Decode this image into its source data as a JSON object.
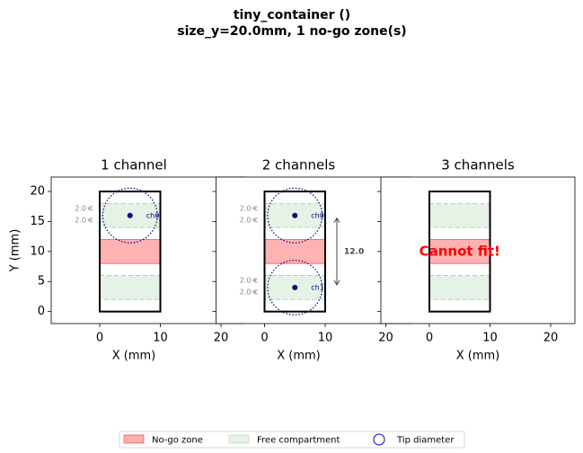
{
  "title": "tiny_container ()",
  "subtitle": "size_y=20.0mm, 1 no-go zone(s)",
  "legend": {
    "position": "bottom",
    "entries": [
      {
        "name": "No-go zone",
        "color": "#ff0000"
      },
      {
        "name": "Free compartment",
        "color": "#008000"
      },
      {
        "name": "Tip diameter",
        "color": "#00008b"
      }
    ]
  },
  "chart_data": [
    {
      "type": "schematic",
      "title": "1 channel",
      "xlabel": "X (mm)",
      "ylabel": "Y (mm)",
      "xlim": [
        -8,
        24
      ],
      "ylim": [
        -2,
        22.4
      ],
      "xticks": [
        0,
        10,
        20
      ],
      "yticks": [
        0,
        5,
        10,
        15,
        20
      ],
      "container": {
        "x": [
          0,
          10
        ],
        "y": [
          0,
          20
        ]
      },
      "no_go": [
        [
          8,
          12
        ]
      ],
      "free": [
        [
          2,
          6
        ],
        [
          14,
          18
        ]
      ],
      "tips": [
        {
          "name": "ch0",
          "x": 5,
          "y": 16,
          "diameter": 9,
          "clearances": [
            "2.0",
            "2.0"
          ]
        }
      ]
    },
    {
      "type": "schematic",
      "title": "2 channels",
      "xlabel": "X (mm)",
      "xlim": [
        -8,
        24
      ],
      "ylim": [
        -2,
        22.4
      ],
      "xticks": [
        0,
        10,
        20
      ],
      "yticks": [
        0,
        5,
        10,
        15,
        20
      ],
      "container": {
        "x": [
          0,
          10
        ],
        "y": [
          0,
          20
        ]
      },
      "no_go": [
        [
          8,
          12
        ]
      ],
      "free": [
        [
          2,
          6
        ],
        [
          14,
          18
        ]
      ],
      "tips": [
        {
          "name": "ch0",
          "x": 5,
          "y": 16,
          "diameter": 9,
          "clearances": [
            "2.0",
            "2.0"
          ]
        },
        {
          "name": "ch1",
          "x": 5,
          "y": 4,
          "diameter": 9,
          "clearances": [
            "2.0",
            "2.0"
          ]
        }
      ],
      "spacing": {
        "value": 12,
        "label": "12.0"
      }
    },
    {
      "type": "schematic",
      "title": "3 channels",
      "xlabel": "X (mm)",
      "xlim": [
        -8,
        24
      ],
      "ylim": [
        -2,
        22.4
      ],
      "xticks": [
        0,
        10,
        20
      ],
      "yticks": [
        0,
        5,
        10,
        15,
        20
      ],
      "container": {
        "x": [
          0,
          10
        ],
        "y": [
          0,
          20
        ]
      },
      "no_go": [
        [
          8,
          12
        ]
      ],
      "free": [
        [
          2,
          6
        ],
        [
          14,
          18
        ]
      ],
      "tips": [],
      "annotation": "Cannot fit!"
    }
  ]
}
